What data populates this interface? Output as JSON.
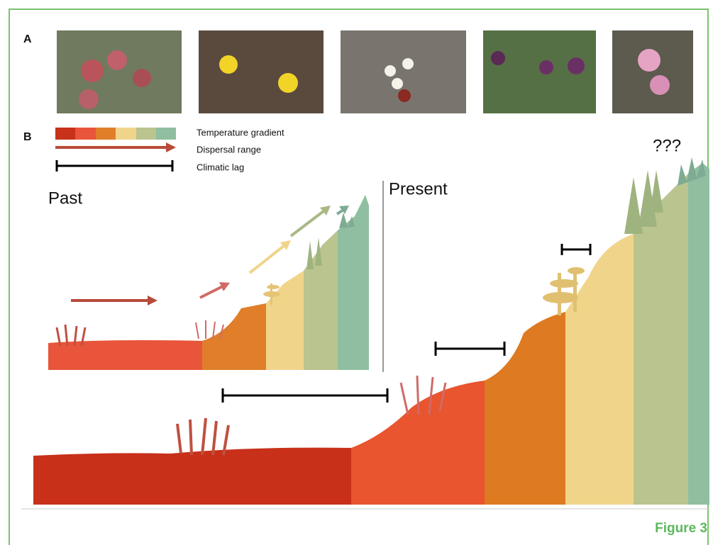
{
  "panels": {
    "a": "A",
    "b": "B"
  },
  "legend": {
    "items": [
      "Temperature gradient",
      "Dispersal range",
      "Climatic lag"
    ]
  },
  "scenes": {
    "past": "Past",
    "present": "Present",
    "unknown": "???"
  },
  "figure_label": "Figure 3"
}
